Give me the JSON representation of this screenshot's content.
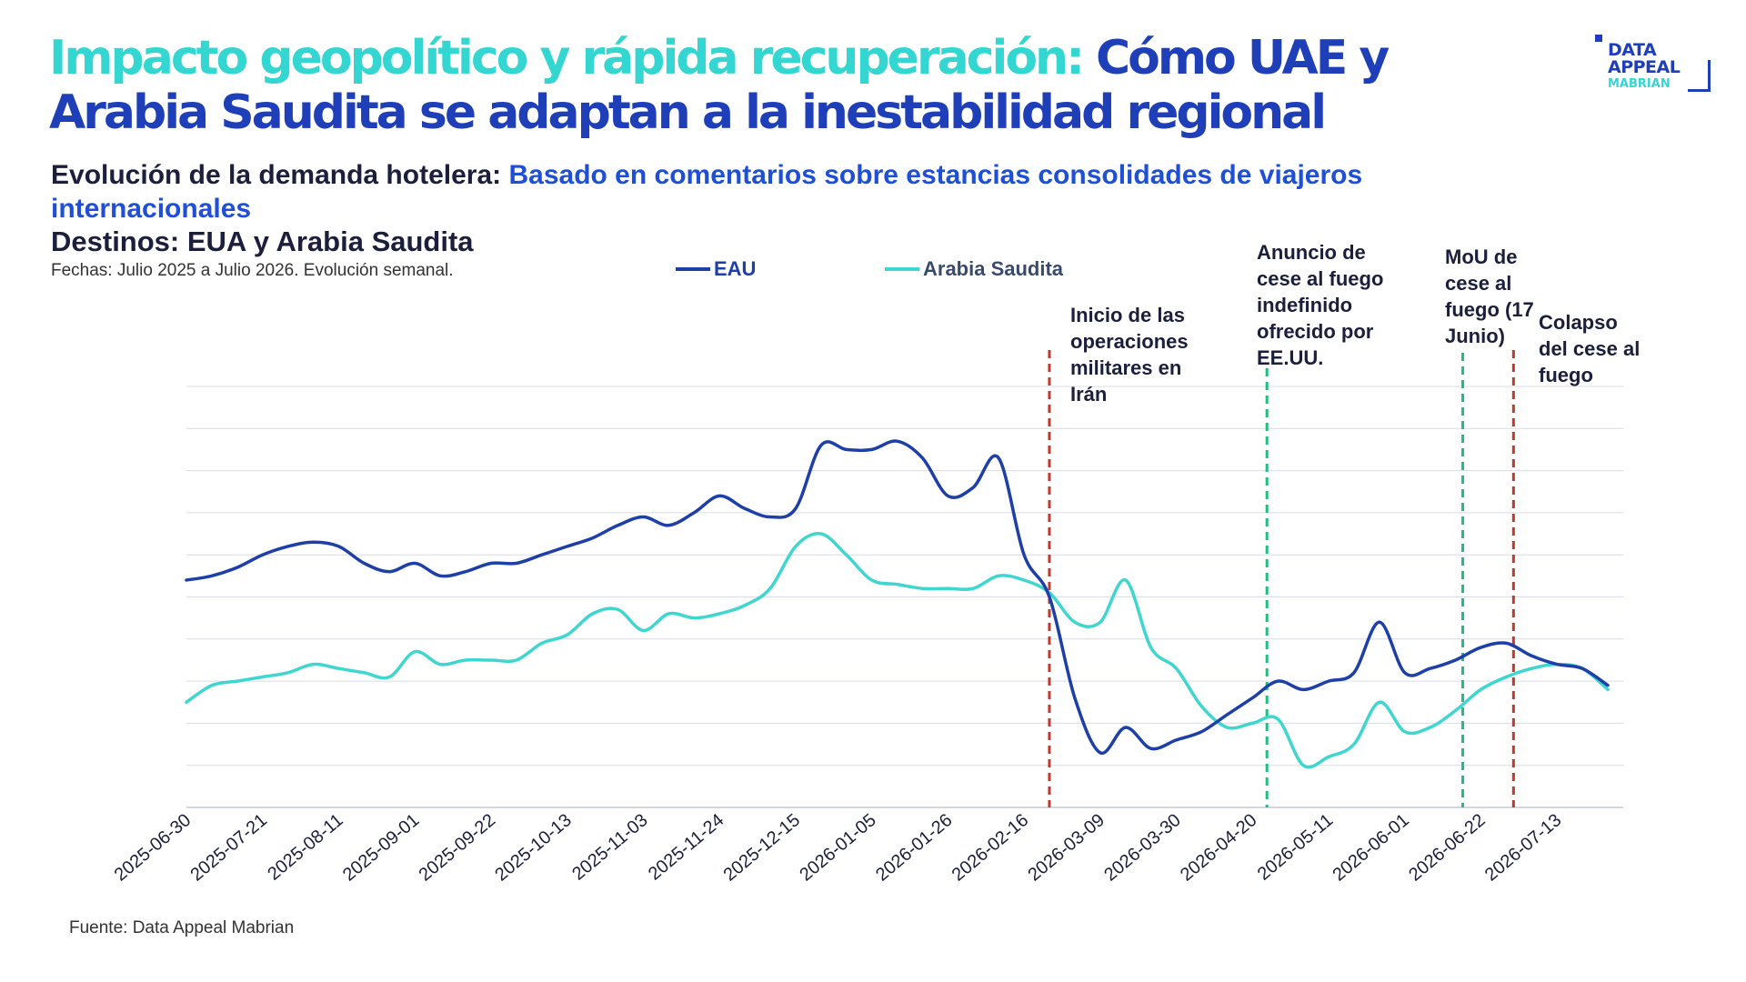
{
  "header": {
    "headline_part1": "Impacto geopolítico y rápida recuperación:",
    "headline_part2": "Cómo UAE y Arabia Saudita  se adaptan a la inestabilidad regional",
    "subtitle_bold": "Evolución de la demanda hotelera:",
    "subtitle_blue": "Basado en comentarios sobre estancias consolidades de viajeros internacionales",
    "destinations": "Destinos: EUA y Arabia Saudita",
    "dates_note": "Fechas: Julio 2025 a Julio 2026. Evolución semanal."
  },
  "logo": {
    "line1": "DATA",
    "line2": "APPEAL",
    "line3": "MABRIAN"
  },
  "footer": {
    "source": "Fuente: Data Appeal Mabrian"
  },
  "colors": {
    "eau": "#1f3fa8",
    "saudi": "#3fd6cf",
    "headline_cyan": "#33d6d0",
    "headline_navy": "#1f3fb8",
    "red_marker": "#c0392b",
    "green_marker": "#1fbf80",
    "grid": "#d9dce6"
  },
  "chart_data": {
    "type": "line",
    "title": "",
    "xlabel": "",
    "ylabel": "",
    "ylim": [
      0,
      10
    ],
    "grid": true,
    "legend_position": "top-center",
    "x_ticks": [
      "2025-06-30",
      "2025-07-21",
      "2025-08-11",
      "2025-09-01",
      "2025-09-22",
      "2025-10-13",
      "2025-11-03",
      "2025-11-24",
      "2025-12-15",
      "2026-01-05",
      "2026-01-26",
      "2026-02-16",
      "2026-03-09",
      "2026-03-30",
      "2026-04-20",
      "2026-05-11",
      "2026-06-01",
      "2026-06-22",
      "2026-07-13"
    ],
    "x_range": [
      "2025-06-30",
      "2026-07-27"
    ],
    "series": [
      {
        "name": "EAU",
        "color": "#1f3fa8",
        "points": [
          [
            "2025-06-30",
            5.4
          ],
          [
            "2025-07-07",
            5.5
          ],
          [
            "2025-07-14",
            5.7
          ],
          [
            "2025-07-21",
            6.0
          ],
          [
            "2025-07-28",
            6.2
          ],
          [
            "2025-08-04",
            6.3
          ],
          [
            "2025-08-11",
            6.2
          ],
          [
            "2025-08-18",
            5.8
          ],
          [
            "2025-08-25",
            5.6
          ],
          [
            "2025-09-01",
            5.8
          ],
          [
            "2025-09-08",
            5.5
          ],
          [
            "2025-09-15",
            5.6
          ],
          [
            "2025-09-22",
            5.8
          ],
          [
            "2025-09-29",
            5.8
          ],
          [
            "2025-10-06",
            6.0
          ],
          [
            "2025-10-13",
            6.2
          ],
          [
            "2025-10-20",
            6.4
          ],
          [
            "2025-10-27",
            6.7
          ],
          [
            "2025-11-03",
            6.9
          ],
          [
            "2025-11-10",
            6.7
          ],
          [
            "2025-11-17",
            7.0
          ],
          [
            "2025-11-24",
            7.4
          ],
          [
            "2025-12-01",
            7.1
          ],
          [
            "2025-12-08",
            6.9
          ],
          [
            "2025-12-15",
            7.1
          ],
          [
            "2025-12-22",
            8.6
          ],
          [
            "2025-12-29",
            8.5
          ],
          [
            "2026-01-05",
            8.5
          ],
          [
            "2026-01-12",
            8.7
          ],
          [
            "2026-01-19",
            8.3
          ],
          [
            "2026-01-26",
            7.4
          ],
          [
            "2026-02-02",
            7.6
          ],
          [
            "2026-02-09",
            8.3
          ],
          [
            "2026-02-16",
            6.0
          ],
          [
            "2026-02-23",
            5.0
          ],
          [
            "2026-03-02",
            2.6
          ],
          [
            "2026-03-09",
            1.3
          ],
          [
            "2026-03-16",
            1.9
          ],
          [
            "2026-03-23",
            1.4
          ],
          [
            "2026-03-30",
            1.6
          ],
          [
            "2026-04-06",
            1.8
          ],
          [
            "2026-04-13",
            2.2
          ],
          [
            "2026-04-20",
            2.6
          ],
          [
            "2026-04-27",
            3.0
          ],
          [
            "2026-05-04",
            2.8
          ],
          [
            "2026-05-11",
            3.0
          ],
          [
            "2026-05-18",
            3.2
          ],
          [
            "2026-05-25",
            4.4
          ],
          [
            "2026-06-01",
            3.2
          ],
          [
            "2026-06-08",
            3.3
          ],
          [
            "2026-06-15",
            3.5
          ],
          [
            "2026-06-22",
            3.8
          ],
          [
            "2026-06-29",
            3.9
          ],
          [
            "2026-07-06",
            3.6
          ],
          [
            "2026-07-13",
            3.4
          ],
          [
            "2026-07-20",
            3.3
          ],
          [
            "2026-07-27",
            2.9
          ]
        ]
      },
      {
        "name": "Arabia Saudita",
        "color": "#3fd6cf",
        "points": [
          [
            "2025-06-30",
            2.5
          ],
          [
            "2025-07-07",
            2.9
          ],
          [
            "2025-07-14",
            3.0
          ],
          [
            "2025-07-21",
            3.1
          ],
          [
            "2025-07-28",
            3.2
          ],
          [
            "2025-08-04",
            3.4
          ],
          [
            "2025-08-11",
            3.3
          ],
          [
            "2025-08-18",
            3.2
          ],
          [
            "2025-08-25",
            3.1
          ],
          [
            "2025-09-01",
            3.7
          ],
          [
            "2025-09-08",
            3.4
          ],
          [
            "2025-09-15",
            3.5
          ],
          [
            "2025-09-22",
            3.5
          ],
          [
            "2025-09-29",
            3.5
          ],
          [
            "2025-10-06",
            3.9
          ],
          [
            "2025-10-13",
            4.1
          ],
          [
            "2025-10-20",
            4.6
          ],
          [
            "2025-10-27",
            4.7
          ],
          [
            "2025-11-03",
            4.2
          ],
          [
            "2025-11-10",
            4.6
          ],
          [
            "2025-11-17",
            4.5
          ],
          [
            "2025-11-24",
            4.6
          ],
          [
            "2025-12-01",
            4.8
          ],
          [
            "2025-12-08",
            5.2
          ],
          [
            "2025-12-15",
            6.2
          ],
          [
            "2025-12-22",
            6.5
          ],
          [
            "2025-12-29",
            6.0
          ],
          [
            "2026-01-05",
            5.4
          ],
          [
            "2026-01-12",
            5.3
          ],
          [
            "2026-01-19",
            5.2
          ],
          [
            "2026-01-26",
            5.2
          ],
          [
            "2026-02-02",
            5.2
          ],
          [
            "2026-02-09",
            5.5
          ],
          [
            "2026-02-16",
            5.4
          ],
          [
            "2026-02-23",
            5.1
          ],
          [
            "2026-03-02",
            4.4
          ],
          [
            "2026-03-09",
            4.4
          ],
          [
            "2026-03-16",
            5.4
          ],
          [
            "2026-03-23",
            3.8
          ],
          [
            "2026-03-30",
            3.3
          ],
          [
            "2026-04-06",
            2.4
          ],
          [
            "2026-04-13",
            1.9
          ],
          [
            "2026-04-20",
            2.0
          ],
          [
            "2026-04-27",
            2.1
          ],
          [
            "2026-05-04",
            1.0
          ],
          [
            "2026-05-11",
            1.2
          ],
          [
            "2026-05-18",
            1.5
          ],
          [
            "2026-05-25",
            2.5
          ],
          [
            "2026-06-01",
            1.8
          ],
          [
            "2026-06-08",
            1.9
          ],
          [
            "2026-06-15",
            2.3
          ],
          [
            "2026-06-22",
            2.8
          ],
          [
            "2026-06-29",
            3.1
          ],
          [
            "2026-07-06",
            3.3
          ],
          [
            "2026-07-13",
            3.4
          ],
          [
            "2026-07-20",
            3.3
          ],
          [
            "2026-07-27",
            2.8
          ]
        ]
      }
    ],
    "events": [
      {
        "date": "2026-02-23",
        "color": "#c0392b",
        "label_lines": [
          "Inicio de las",
          "operaciones",
          "militares en",
          "Irán"
        ]
      },
      {
        "date": "2026-04-24",
        "color": "#1fbf80",
        "label_lines": [
          "Anuncio de",
          "cese al fuego",
          "indefinido",
          "ofrecido por",
          "EE.UU."
        ]
      },
      {
        "date": "2026-06-17",
        "color": "#1fbf80",
        "label_lines": [
          "MoU de",
          "cese al",
          "fuego (17",
          "Junio)"
        ]
      },
      {
        "date": "2026-07-01",
        "color": "#c0392b",
        "label_lines": [
          "Colapso",
          "del cese al",
          "fuego"
        ]
      }
    ]
  }
}
